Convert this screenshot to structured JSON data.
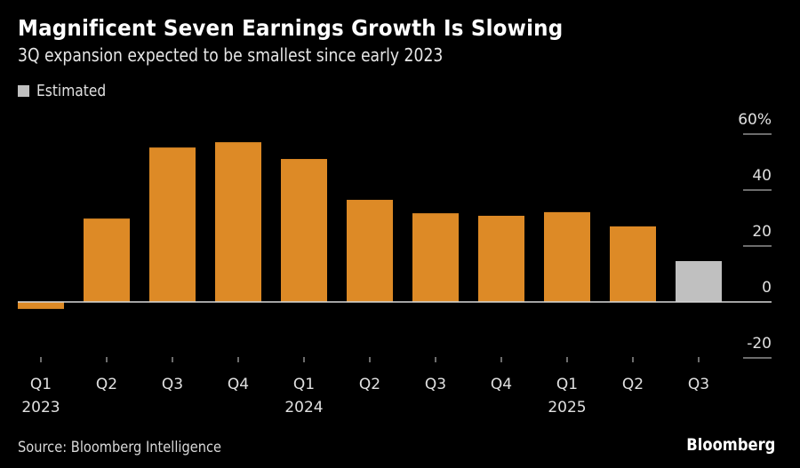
{
  "header": {
    "title": "Magnificent Seven Earnings Growth Is Slowing",
    "subtitle": "3Q expansion expected to be smallest since early 2023"
  },
  "legend": {
    "label": "Estimated",
    "color": "#c0c0c0"
  },
  "footer": {
    "source": "Source: Bloomberg Intelligence",
    "brand": "Bloomberg"
  },
  "chart_data": {
    "type": "bar",
    "title": "Magnificent Seven Earnings Growth Is Slowing",
    "subtitle": "3Q expansion expected to be smallest since early 2023",
    "categories": [
      "Q1 2023",
      "Q2 2023",
      "Q3 2023",
      "Q4 2023",
      "Q1 2024",
      "Q2 2024",
      "Q3 2024",
      "Q4 2024",
      "Q1 2025",
      "Q2 2025",
      "Q3 2025"
    ],
    "x_tick_labels": [
      {
        "quarter": "Q1",
        "year": "2023"
      },
      {
        "quarter": "Q2",
        "year": ""
      },
      {
        "quarter": "Q3",
        "year": ""
      },
      {
        "quarter": "Q4",
        "year": ""
      },
      {
        "quarter": "Q1",
        "year": "2024"
      },
      {
        "quarter": "Q2",
        "year": ""
      },
      {
        "quarter": "Q3",
        "year": ""
      },
      {
        "quarter": "Q4",
        "year": ""
      },
      {
        "quarter": "Q1",
        "year": "2025"
      },
      {
        "quarter": "Q2",
        "year": ""
      },
      {
        "quarter": "Q3",
        "year": ""
      }
    ],
    "values": [
      -2.5,
      29.8,
      55.2,
      57.1,
      51.1,
      36.5,
      31.7,
      30.8,
      32.1,
      27.0,
      14.6
    ],
    "estimated": [
      false,
      false,
      false,
      false,
      false,
      false,
      false,
      false,
      false,
      false,
      true
    ],
    "colors": {
      "actual": "#dd8a26",
      "estimated": "#c0c0c0",
      "zero_line": "#d9d9d9",
      "grid": "#d9d9d9"
    },
    "y_ticks": [
      {
        "value": 60,
        "label": "60%"
      },
      {
        "value": 40,
        "label": "40"
      },
      {
        "value": 20,
        "label": "20"
      },
      {
        "value": 0,
        "label": "0"
      },
      {
        "value": -20,
        "label": "-20"
      }
    ],
    "ylim": [
      -20,
      60
    ],
    "xlabel": "",
    "ylabel": "",
    "y_axis_side": "right",
    "legend": {
      "entries": [
        "Estimated"
      ],
      "placement": "top-left"
    },
    "source": "Source: Bloomberg Intelligence"
  }
}
